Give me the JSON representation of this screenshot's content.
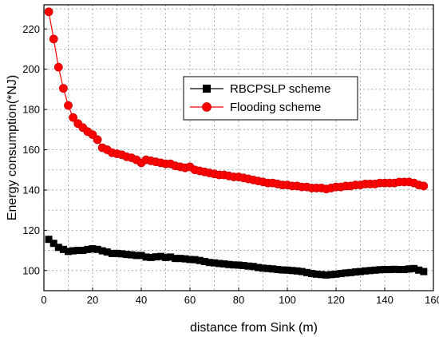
{
  "chart_data": {
    "type": "line",
    "xlabel": "distance from Sink  (m)",
    "ylabel": "Energy consumption(*NJ)",
    "xlim": [
      0,
      160
    ],
    "ylim": [
      90,
      232
    ],
    "xticks": [
      0,
      20,
      40,
      60,
      80,
      100,
      120,
      140,
      160
    ],
    "yticks": [
      100,
      120,
      140,
      160,
      180,
      200,
      220
    ],
    "grid": true,
    "legend_position": "upper-right",
    "series": [
      {
        "name": "RBCPSLP scheme",
        "color": "#000000",
        "marker": "square",
        "x": [
          2,
          4,
          6,
          8,
          10,
          12,
          14,
          16,
          18,
          20,
          22,
          24,
          26,
          28,
          30,
          32,
          34,
          36,
          38,
          40,
          42,
          44,
          46,
          48,
          50,
          52,
          54,
          56,
          58,
          60,
          62,
          64,
          66,
          68,
          70,
          72,
          74,
          76,
          78,
          80,
          82,
          84,
          86,
          88,
          90,
          92,
          94,
          96,
          98,
          100,
          102,
          104,
          106,
          108,
          110,
          112,
          114,
          116,
          118,
          120,
          122,
          124,
          126,
          128,
          130,
          132,
          134,
          136,
          138,
          140,
          142,
          144,
          146,
          148,
          150,
          152,
          154,
          156
        ],
        "y": [
          115.5,
          113.5,
          111.5,
          110.5,
          109.5,
          109.8,
          110,
          110,
          110.5,
          110.8,
          110.5,
          109.8,
          109.2,
          108.5,
          108.5,
          108.3,
          108,
          107.8,
          107.5,
          107.5,
          106.7,
          106.5,
          106.8,
          107,
          106.5,
          106.7,
          106,
          106,
          105.8,
          105.5,
          105.4,
          105,
          104.5,
          104,
          103.8,
          103.5,
          103.3,
          103,
          102.8,
          102.7,
          102.5,
          102.2,
          102,
          101.5,
          101.2,
          101,
          100.8,
          100.5,
          100.3,
          100.2,
          100,
          99.8,
          99.5,
          99,
          98.5,
          98.2,
          98,
          97.8,
          98,
          98.2,
          98.5,
          98.8,
          99,
          99.3,
          99.5,
          99.8,
          100,
          100.2,
          100.4,
          100.5,
          100.5,
          100.6,
          100.5,
          100.5,
          100.8,
          101,
          100.2,
          99.5
        ]
      },
      {
        "name": "Flooding scheme",
        "color": "#ff0000",
        "marker": "circle",
        "x": [
          2,
          4,
          6,
          8,
          10,
          12,
          14,
          16,
          18,
          20,
          22,
          24,
          26,
          28,
          30,
          32,
          34,
          36,
          38,
          40,
          42,
          44,
          46,
          48,
          50,
          52,
          54,
          56,
          58,
          60,
          62,
          64,
          66,
          68,
          70,
          72,
          74,
          76,
          78,
          80,
          82,
          84,
          86,
          88,
          90,
          92,
          94,
          96,
          98,
          100,
          102,
          104,
          106,
          108,
          110,
          112,
          114,
          116,
          118,
          120,
          122,
          124,
          126,
          128,
          130,
          132,
          134,
          136,
          138,
          140,
          142,
          144,
          146,
          148,
          150,
          152,
          154,
          156
        ],
        "y": [
          228.5,
          215,
          201,
          190.5,
          182,
          176,
          173,
          171,
          169,
          167.5,
          165,
          161,
          160,
          158.5,
          158,
          157.5,
          156.5,
          156,
          155,
          153.5,
          155,
          154.5,
          154,
          153.5,
          153,
          153,
          152,
          151.5,
          151,
          151.5,
          150,
          149.5,
          149,
          148.5,
          148,
          147.5,
          147.5,
          147,
          146.5,
          146.5,
          146,
          145.5,
          145,
          144.5,
          144,
          143.5,
          143.5,
          143,
          142.5,
          142.5,
          142,
          142,
          141.5,
          141.5,
          141,
          141,
          141,
          140.5,
          141,
          141.5,
          141.5,
          142,
          142,
          142.5,
          142.5,
          143,
          143,
          143,
          143.5,
          143.5,
          143.5,
          143.5,
          144,
          144,
          144,
          143.5,
          142.5,
          142
        ]
      }
    ]
  }
}
